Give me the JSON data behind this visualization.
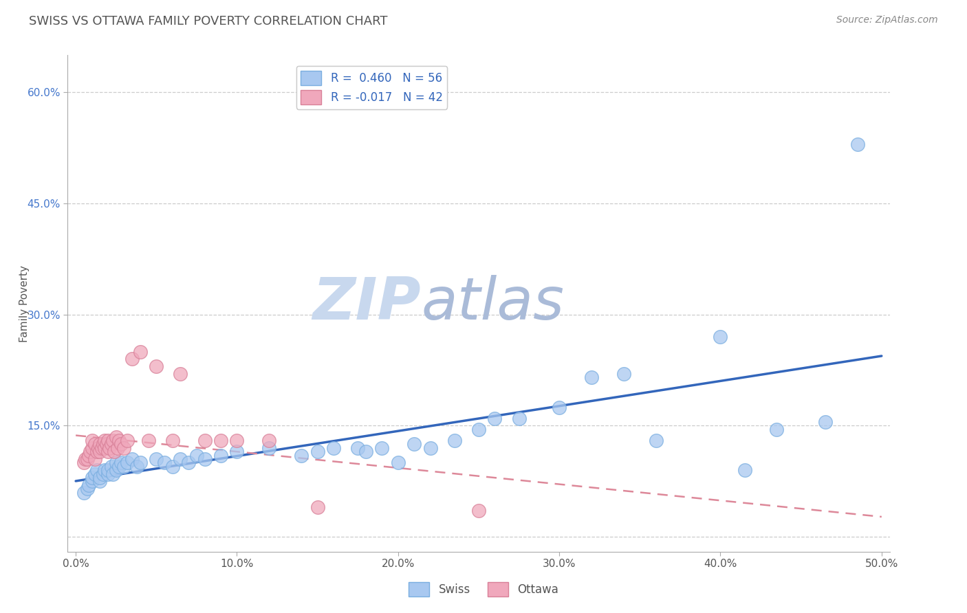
{
  "title": "SWISS VS OTTAWA FAMILY POVERTY CORRELATION CHART",
  "source": "Source: ZipAtlas.com",
  "ylabel": "Family Poverty",
  "xlim": [
    -0.005,
    0.505
  ],
  "ylim": [
    -0.02,
    0.65
  ],
  "xticks": [
    0.0,
    0.1,
    0.2,
    0.3,
    0.4,
    0.5
  ],
  "xtick_labels": [
    "0.0%",
    "10.0%",
    "20.0%",
    "30.0%",
    "40.0%",
    "50.0%"
  ],
  "yticks": [
    0.15,
    0.3,
    0.45,
    0.6
  ],
  "ytick_labels": [
    "15.0%",
    "30.0%",
    "45.0%",
    "60.0%"
  ],
  "swiss_R": 0.46,
  "swiss_N": 56,
  "ottawa_R": -0.017,
  "ottawa_N": 42,
  "swiss_color": "#a8c8f0",
  "swiss_edge": "#7aaee0",
  "ottawa_color": "#f0a8bc",
  "ottawa_edge": "#d88098",
  "trend_swiss_color": "#3366bb",
  "trend_ottawa_color": "#cc4466",
  "trend_ottawa_dash_color": "#dd8899",
  "watermark_zip": "ZIP",
  "watermark_atlas": "atlas",
  "watermark_color_zip": "#c8d8ee",
  "watermark_color_atlas": "#aabbd8",
  "swiss_x": [
    0.005,
    0.007,
    0.008,
    0.01,
    0.01,
    0.012,
    0.013,
    0.015,
    0.015,
    0.017,
    0.018,
    0.02,
    0.02,
    0.022,
    0.023,
    0.025,
    0.025,
    0.027,
    0.028,
    0.03,
    0.032,
    0.035,
    0.038,
    0.04,
    0.05,
    0.055,
    0.06,
    0.065,
    0.07,
    0.075,
    0.08,
    0.09,
    0.1,
    0.12,
    0.14,
    0.15,
    0.16,
    0.175,
    0.18,
    0.19,
    0.2,
    0.21,
    0.22,
    0.235,
    0.25,
    0.26,
    0.275,
    0.3,
    0.32,
    0.34,
    0.36,
    0.4,
    0.415,
    0.435,
    0.465,
    0.485
  ],
  "swiss_y": [
    0.06,
    0.065,
    0.07,
    0.075,
    0.08,
    0.085,
    0.09,
    0.075,
    0.08,
    0.085,
    0.09,
    0.085,
    0.09,
    0.095,
    0.085,
    0.09,
    0.1,
    0.095,
    0.1,
    0.095,
    0.1,
    0.105,
    0.095,
    0.1,
    0.105,
    0.1,
    0.095,
    0.105,
    0.1,
    0.11,
    0.105,
    0.11,
    0.115,
    0.12,
    0.11,
    0.115,
    0.12,
    0.12,
    0.115,
    0.12,
    0.1,
    0.125,
    0.12,
    0.13,
    0.145,
    0.16,
    0.16,
    0.175,
    0.215,
    0.22,
    0.13,
    0.27,
    0.09,
    0.145,
    0.155,
    0.53
  ],
  "ottawa_x": [
    0.005,
    0.006,
    0.007,
    0.008,
    0.009,
    0.01,
    0.01,
    0.012,
    0.012,
    0.013,
    0.014,
    0.015,
    0.015,
    0.016,
    0.017,
    0.018,
    0.018,
    0.019,
    0.02,
    0.02,
    0.021,
    0.022,
    0.023,
    0.024,
    0.025,
    0.026,
    0.027,
    0.028,
    0.03,
    0.032,
    0.035,
    0.04,
    0.045,
    0.05,
    0.06,
    0.065,
    0.08,
    0.09,
    0.1,
    0.12,
    0.15,
    0.25
  ],
  "ottawa_y": [
    0.1,
    0.105,
    0.105,
    0.11,
    0.115,
    0.12,
    0.13,
    0.105,
    0.125,
    0.115,
    0.12,
    0.115,
    0.125,
    0.12,
    0.125,
    0.12,
    0.13,
    0.125,
    0.115,
    0.13,
    0.12,
    0.125,
    0.13,
    0.115,
    0.135,
    0.12,
    0.13,
    0.125,
    0.12,
    0.13,
    0.24,
    0.25,
    0.13,
    0.23,
    0.13,
    0.22,
    0.13,
    0.13,
    0.13,
    0.13,
    0.04,
    0.035
  ]
}
